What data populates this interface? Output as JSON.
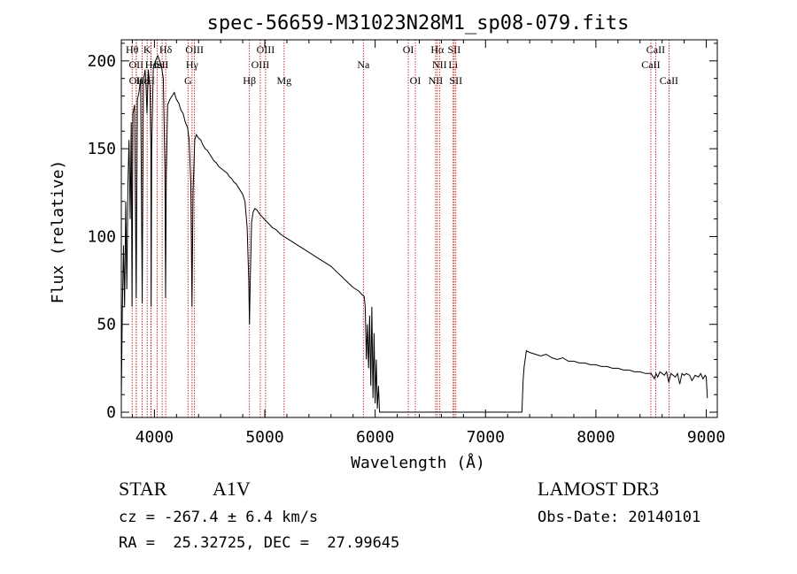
{
  "chart_data": {
    "type": "line",
    "title": "spec-56659-M31023N28M1_sp08-079.fits",
    "xlabel": "Wavelength (Å)",
    "ylabel": "Flux (relative)",
    "xlim": [
      3700,
      9100
    ],
    "ylim": [
      -3,
      212
    ],
    "xticks": [
      4000,
      5000,
      6000,
      7000,
      8000,
      9000
    ],
    "yticks": [
      0,
      50,
      100,
      150,
      200
    ],
    "grid": false,
    "series": [
      {
        "name": "spectrum",
        "points": [
          [
            3700,
            8
          ],
          [
            3710,
            60
          ],
          [
            3720,
            95
          ],
          [
            3730,
            60
          ],
          [
            3740,
            120
          ],
          [
            3750,
            70
          ],
          [
            3760,
            130
          ],
          [
            3770,
            155
          ],
          [
            3780,
            110
          ],
          [
            3790,
            165
          ],
          [
            3797,
            60
          ],
          [
            3805,
            170
          ],
          [
            3820,
            175
          ],
          [
            3835,
            65
          ],
          [
            3845,
            178
          ],
          [
            3860,
            182
          ],
          [
            3875,
            190
          ],
          [
            3889,
            62
          ],
          [
            3900,
            188
          ],
          [
            3915,
            195
          ],
          [
            3925,
            185
          ],
          [
            3933,
            170
          ],
          [
            3945,
            195
          ],
          [
            3960,
            185
          ],
          [
            3968,
            150
          ],
          [
            3970,
            60
          ],
          [
            3975,
            150
          ],
          [
            3990,
            196
          ],
          [
            4010,
            200
          ],
          [
            4030,
            203
          ],
          [
            4060,
            198
          ],
          [
            4080,
            190
          ],
          [
            4095,
            140
          ],
          [
            4101,
            65
          ],
          [
            4108,
            135
          ],
          [
            4120,
            175
          ],
          [
            4140,
            178
          ],
          [
            4160,
            180
          ],
          [
            4180,
            182
          ],
          [
            4200,
            178
          ],
          [
            4220,
            176
          ],
          [
            4240,
            172
          ],
          [
            4260,
            170
          ],
          [
            4280,
            165
          ],
          [
            4300,
            162
          ],
          [
            4315,
            155
          ],
          [
            4330,
            130
          ],
          [
            4340,
            60
          ],
          [
            4350,
            125
          ],
          [
            4365,
            155
          ],
          [
            4380,
            158
          ],
          [
            4400,
            156
          ],
          [
            4420,
            155
          ],
          [
            4440,
            152
          ],
          [
            4460,
            150
          ],
          [
            4480,
            149
          ],
          [
            4500,
            147
          ],
          [
            4520,
            145
          ],
          [
            4540,
            143
          ],
          [
            4560,
            142
          ],
          [
            4580,
            140
          ],
          [
            4600,
            139
          ],
          [
            4620,
            138
          ],
          [
            4640,
            137
          ],
          [
            4660,
            136
          ],
          [
            4680,
            134
          ],
          [
            4700,
            133
          ],
          [
            4720,
            131
          ],
          [
            4740,
            130
          ],
          [
            4760,
            128
          ],
          [
            4780,
            126
          ],
          [
            4800,
            124
          ],
          [
            4820,
            120
          ],
          [
            4840,
            105
          ],
          [
            4855,
            75
          ],
          [
            4861,
            50
          ],
          [
            4868,
            75
          ],
          [
            4880,
            108
          ],
          [
            4895,
            114
          ],
          [
            4910,
            116
          ],
          [
            4930,
            115
          ],
          [
            4950,
            113
          ],
          [
            4980,
            111
          ],
          [
            5010,
            109
          ],
          [
            5040,
            107
          ],
          [
            5070,
            105
          ],
          [
            5100,
            104
          ],
          [
            5150,
            101
          ],
          [
            5200,
            99
          ],
          [
            5250,
            97
          ],
          [
            5300,
            95
          ],
          [
            5350,
            93
          ],
          [
            5400,
            91
          ],
          [
            5450,
            89
          ],
          [
            5500,
            87
          ],
          [
            5550,
            85
          ],
          [
            5600,
            83
          ],
          [
            5650,
            80
          ],
          [
            5700,
            77
          ],
          [
            5750,
            74
          ],
          [
            5800,
            71
          ],
          [
            5850,
            69
          ],
          [
            5880,
            67
          ],
          [
            5900,
            66
          ],
          [
            5910,
            60
          ],
          [
            5920,
            30
          ],
          [
            5930,
            50
          ],
          [
            5940,
            25
          ],
          [
            5950,
            55
          ],
          [
            5960,
            15
          ],
          [
            5970,
            60
          ],
          [
            5980,
            8
          ],
          [
            5990,
            45
          ],
          [
            6000,
            5
          ],
          [
            6010,
            30
          ],
          [
            6020,
            2
          ],
          [
            6030,
            15
          ],
          [
            6040,
            0
          ],
          [
            6050,
            0
          ],
          [
            6100,
            0
          ],
          [
            6500,
            0
          ],
          [
            7000,
            0
          ],
          [
            7300,
            0
          ],
          [
            7330,
            0
          ],
          [
            7340,
            18
          ],
          [
            7350,
            26
          ],
          [
            7370,
            35
          ],
          [
            7400,
            34
          ],
          [
            7450,
            33
          ],
          [
            7500,
            32
          ],
          [
            7550,
            33
          ],
          [
            7600,
            31
          ],
          [
            7650,
            30
          ],
          [
            7700,
            31
          ],
          [
            7750,
            29
          ],
          [
            7800,
            29
          ],
          [
            7850,
            28
          ],
          [
            7900,
            28
          ],
          [
            7950,
            27
          ],
          [
            8000,
            27
          ],
          [
            8050,
            26
          ],
          [
            8100,
            26
          ],
          [
            8150,
            25
          ],
          [
            8200,
            25
          ],
          [
            8250,
            24
          ],
          [
            8300,
            24
          ],
          [
            8350,
            23
          ],
          [
            8400,
            23
          ],
          [
            8450,
            22
          ],
          [
            8500,
            22
          ],
          [
            8530,
            19
          ],
          [
            8545,
            22
          ],
          [
            8560,
            20
          ],
          [
            8580,
            23
          ],
          [
            8600,
            22
          ],
          [
            8620,
            21
          ],
          [
            8640,
            23
          ],
          [
            8660,
            17
          ],
          [
            8680,
            22
          ],
          [
            8700,
            21
          ],
          [
            8720,
            20
          ],
          [
            8740,
            22
          ],
          [
            8760,
            16
          ],
          [
            8780,
            22
          ],
          [
            8800,
            21
          ],
          [
            8820,
            22
          ],
          [
            8850,
            21
          ],
          [
            8870,
            18
          ],
          [
            8900,
            21
          ],
          [
            8930,
            20
          ],
          [
            8950,
            22
          ],
          [
            8970,
            19
          ],
          [
            8990,
            21
          ],
          [
            9000,
            20
          ],
          [
            9010,
            8
          ]
        ]
      }
    ],
    "lines": [
      {
        "wl": 3798,
        "label": "Hθ",
        "row": 0
      },
      {
        "wl": 3835,
        "label": "OII",
        "row": 1
      },
      {
        "wl": 3836,
        "label": "OII",
        "row": 2
      },
      {
        "wl": 3889,
        "label": "Hε",
        "row": 2
      },
      {
        "wl": 3934,
        "label": "K",
        "row": 0
      },
      {
        "wl": 3969,
        "label": "H",
        "row": 2
      },
      {
        "wl": 3970,
        "label": "Hε",
        "row": 1
      },
      {
        "wl": 4026,
        "label": "HeI",
        "row": 1
      },
      {
        "wl": 4102,
        "label": "Hδ",
        "row": 0
      },
      {
        "wl": 4070,
        "label": "SII",
        "row": 1
      },
      {
        "wl": 4304,
        "label": "G",
        "row": 2
      },
      {
        "wl": 4341,
        "label": "Hγ",
        "row": 1
      },
      {
        "wl": 4363,
        "label": "OIII",
        "row": 0
      },
      {
        "wl": 4861,
        "label": "Hβ",
        "row": 2
      },
      {
        "wl": 4959,
        "label": "OIII",
        "row": 1
      },
      {
        "wl": 5007,
        "label": "OIII",
        "row": 0
      },
      {
        "wl": 5175,
        "label": "Mg",
        "row": 2
      },
      {
        "wl": 5893,
        "label": "Na",
        "row": 1
      },
      {
        "wl": 6300,
        "label": "OI",
        "row": 0
      },
      {
        "wl": 6364,
        "label": "OI",
        "row": 2
      },
      {
        "wl": 6548,
        "label": "NII",
        "row": 2
      },
      {
        "wl": 6563,
        "label": "Hα",
        "row": 0
      },
      {
        "wl": 6583,
        "label": "NII",
        "row": 1
      },
      {
        "wl": 6707,
        "label": "Li",
        "row": 1
      },
      {
        "wl": 6716,
        "label": "SII",
        "row": 0
      },
      {
        "wl": 6731,
        "label": "SII",
        "row": 2
      },
      {
        "wl": 8498,
        "label": "CaII",
        "row": 1
      },
      {
        "wl": 8542,
        "label": "CaII",
        "row": 0
      },
      {
        "wl": 8662,
        "label": "CaII",
        "row": 2
      }
    ]
  },
  "info": {
    "object_class": "STAR",
    "subclass": "A1V",
    "survey": "LAMOST DR3",
    "cz": "cz = -267.4 ± 6.4 km/s",
    "obs_date": "Obs-Date: 20140101",
    "radec": "RA =  25.32725, DEC =  27.99645"
  }
}
